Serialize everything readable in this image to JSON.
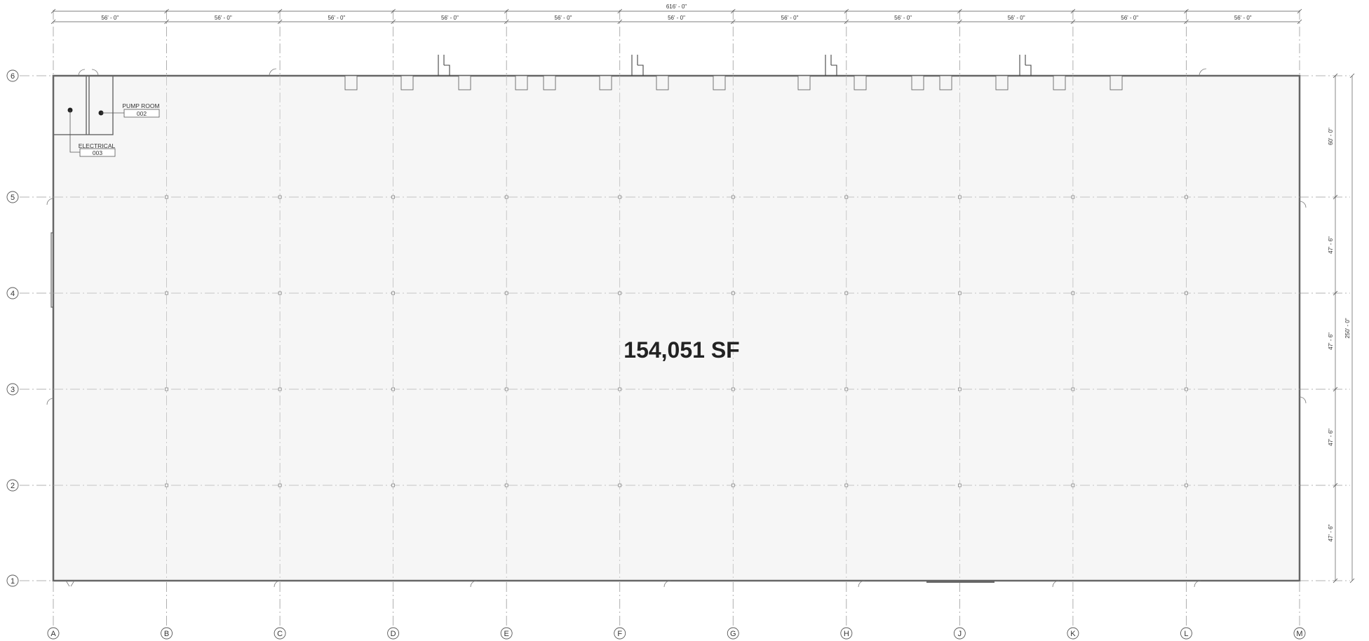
{
  "overall_dimension": "616' - 0\"",
  "bay_dimension": "56' - 0\"",
  "column_lines": [
    "A",
    "B",
    "C",
    "D",
    "E",
    "F",
    "G",
    "H",
    "J",
    "K",
    "L",
    "M"
  ],
  "row_lines": [
    "6",
    "5",
    "4",
    "3",
    "2",
    "1"
  ],
  "row_dimensions": [
    "60' - 0\"",
    "47' - 6\"",
    "47' - 6\"",
    "47' - 6\"",
    "47' - 6\""
  ],
  "overall_depth": "250' - 0\"",
  "rooms": [
    {
      "name": "PUMP ROOM",
      "number": "002"
    },
    {
      "name": "ELECTRICAL",
      "number": "003"
    }
  ],
  "area_label": "154,051 SF",
  "colors": {
    "floor": "#f6f6f6",
    "wall": "#666666",
    "grid": "#9a9a9a",
    "text": "#333333"
  }
}
